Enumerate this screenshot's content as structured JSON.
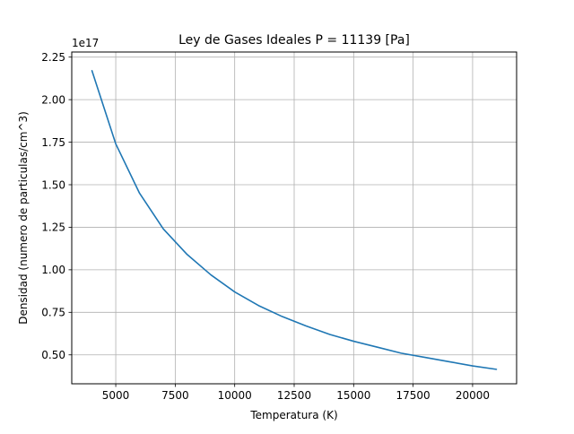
{
  "chart_data": {
    "type": "line",
    "title": "Ley de Gases Ideales P = 11139 [Pa]",
    "xlabel": "Temperatura (K)",
    "ylabel": "Densidad (numero de particulas/cm^3)",
    "y_offset_label": "1e17",
    "xlim": [
      3150,
      21850
    ],
    "ylim": [
      0.33,
      2.28
    ],
    "x_ticks": [
      5000,
      7500,
      10000,
      12500,
      15000,
      17500,
      20000
    ],
    "x_tick_labels": [
      "5000",
      "7500",
      "10000",
      "12500",
      "15000",
      "17500",
      "20000"
    ],
    "y_ticks": [
      0.5,
      0.75,
      1.0,
      1.25,
      1.5,
      1.75,
      2.0,
      2.25
    ],
    "y_tick_labels": [
      "0.50",
      "0.75",
      "1.00",
      "1.25",
      "1.50",
      "1.75",
      "2.00",
      "2.25"
    ],
    "grid": true,
    "series": [
      {
        "color": "#1f77b4",
        "x": [
          4000,
          5000,
          6000,
          7000,
          8000,
          9000,
          10000,
          11000,
          12000,
          13000,
          14000,
          15000,
          16000,
          17000,
          18000,
          19000,
          20000,
          21000
        ],
        "y": [
          2.17,
          1.74,
          1.45,
          1.24,
          1.09,
          0.97,
          0.87,
          0.79,
          0.725,
          0.67,
          0.62,
          0.58,
          0.545,
          0.51,
          0.485,
          0.46,
          0.435,
          0.415
        ]
      }
    ]
  }
}
